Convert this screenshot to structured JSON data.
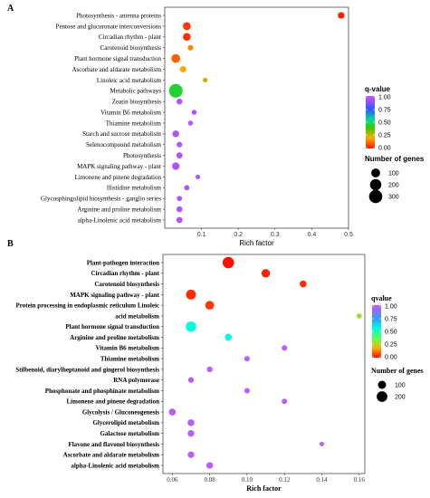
{
  "chart_data": [
    {
      "panel": "A",
      "type": "scatter",
      "xlabel": "Rich factor",
      "xlim": [
        0,
        0.5
      ],
      "xticks": [
        "0.1",
        "0.2",
        "0.3",
        "0.4",
        "0.5"
      ],
      "categories": [
        "Photosynthesis - antenna proteins",
        "Pentose and glucuronate interconversions",
        "Circadian rhythm - plant",
        "Carotenoid biosynthesis",
        "Plant hormone signal transduction",
        "Ascorbate and aldarate metabolism",
        "Linoleic acid metabolism",
        "Metabolic pathways",
        "Zeatin biosynthesis",
        "Vitamin B6 metabolism",
        "Thiamine metabolism",
        "Starch and sucrose metabolism",
        "Selenocompound metabolism",
        "Photosynthesis",
        "MAPK signaling pathway - plant",
        "Limonene and pinene degradation",
        "Histidine metabolism",
        "Glycosphingolipid biosynthesis - ganglio series",
        "Arginine and proline metabolism",
        "alpha-Linolenic acid metabolism"
      ],
      "points": [
        {
          "x": 0.48,
          "q": 0.02,
          "genes": 40
        },
        {
          "x": 0.06,
          "q": 0.05,
          "genes": 70
        },
        {
          "x": 0.06,
          "q": 0.04,
          "genes": 65
        },
        {
          "x": 0.07,
          "q": 0.15,
          "genes": 20
        },
        {
          "x": 0.03,
          "q": 0.1,
          "genes": 95
        },
        {
          "x": 0.05,
          "q": 0.2,
          "genes": 35
        },
        {
          "x": 0.11,
          "q": 0.25,
          "genes": 10
        },
        {
          "x": 0.03,
          "q": 0.45,
          "genes": 320
        },
        {
          "x": 0.04,
          "q": 0.95,
          "genes": 25
        },
        {
          "x": 0.08,
          "q": 0.95,
          "genes": 12
        },
        {
          "x": 0.07,
          "q": 0.95,
          "genes": 12
        },
        {
          "x": 0.03,
          "q": 0.95,
          "genes": 40
        },
        {
          "x": 0.04,
          "q": 0.95,
          "genes": 20
        },
        {
          "x": 0.04,
          "q": 0.95,
          "genes": 30
        },
        {
          "x": 0.03,
          "q": 0.95,
          "genes": 60
        },
        {
          "x": 0.09,
          "q": 0.95,
          "genes": 8
        },
        {
          "x": 0.06,
          "q": 0.95,
          "genes": 15
        },
        {
          "x": 0.04,
          "q": 0.95,
          "genes": 15
        },
        {
          "x": 0.04,
          "q": 0.95,
          "genes": 25
        },
        {
          "x": 0.04,
          "q": 0.95,
          "genes": 30
        }
      ],
      "legend_color": {
        "title": "q-value",
        "ticks": [
          "1.00",
          "0.75",
          "0.50",
          "0.25",
          "0.00"
        ]
      },
      "legend_size": {
        "title": "Number of genes",
        "items": [
          100,
          200,
          300
        ]
      }
    },
    {
      "panel": "B",
      "type": "scatter",
      "xlabel": "Rich factor",
      "xlim": [
        0.055,
        0.163
      ],
      "xticks": [
        "0.06",
        "0.08",
        "0.10",
        "0.12",
        "0.14",
        "0.16"
      ],
      "categories": [
        "Plant-pathogen interaction",
        "Circadian rhythm - plant",
        "Carotenoid biosynthesis",
        "MAPK signaling pathway - plant",
        "Protein processing in endoplasmic reticulum Linoleic",
        "acid metabolism",
        "Plant hormone signal transduction",
        "Arginine and proline metabolism",
        "Vitamin B6 metabolism",
        "Thiamine metabolism",
        "Stilbenoid, diarylheptanoid and gingerol biosynthesis",
        "RNA polymerase",
        "Phosphonate and phosphinate metabolism",
        "Limonene and pinene degradation",
        "Glycolysis / Gluconeogenesis",
        "Glycerolipid metabolism",
        "Galactose metabolism",
        "Flavone and flavonol biosynthesis",
        "Ascorbate and aldarate metabolism",
        "alpha-Linolenic acid metabolism"
      ],
      "points": [
        {
          "x": 0.09,
          "q": 0.0,
          "genes": 240
        },
        {
          "x": 0.11,
          "q": 0.02,
          "genes": 110
        },
        {
          "x": 0.13,
          "q": 0.03,
          "genes": 60
        },
        {
          "x": 0.07,
          "q": 0.03,
          "genes": 165
        },
        {
          "x": 0.08,
          "q": 0.05,
          "genes": 125
        },
        {
          "x": 0.16,
          "q": 0.28,
          "genes": 25
        },
        {
          "x": 0.07,
          "q": 0.55,
          "genes": 190
        },
        {
          "x": 0.09,
          "q": 0.55,
          "genes": 65
        },
        {
          "x": 0.12,
          "q": 0.97,
          "genes": 30
        },
        {
          "x": 0.1,
          "q": 0.97,
          "genes": 30
        },
        {
          "x": 0.08,
          "q": 0.97,
          "genes": 35
        },
        {
          "x": 0.07,
          "q": 0.97,
          "genes": 35
        },
        {
          "x": 0.1,
          "q": 0.97,
          "genes": 30
        },
        {
          "x": 0.12,
          "q": 0.97,
          "genes": 30
        },
        {
          "x": 0.06,
          "q": 0.97,
          "genes": 65
        },
        {
          "x": 0.07,
          "q": 0.97,
          "genes": 60
        },
        {
          "x": 0.07,
          "q": 0.97,
          "genes": 55
        },
        {
          "x": 0.14,
          "q": 0.97,
          "genes": 15
        },
        {
          "x": 0.07,
          "q": 0.97,
          "genes": 55
        },
        {
          "x": 0.08,
          "q": 0.97,
          "genes": 55
        }
      ],
      "legend_color": {
        "title": "qvalue",
        "ticks": [
          "1.00",
          "0.75",
          "0.50",
          "0.25",
          "0.00"
        ]
      },
      "legend_size": {
        "title": "Number of genes",
        "items": [
          100,
          200
        ]
      }
    }
  ]
}
